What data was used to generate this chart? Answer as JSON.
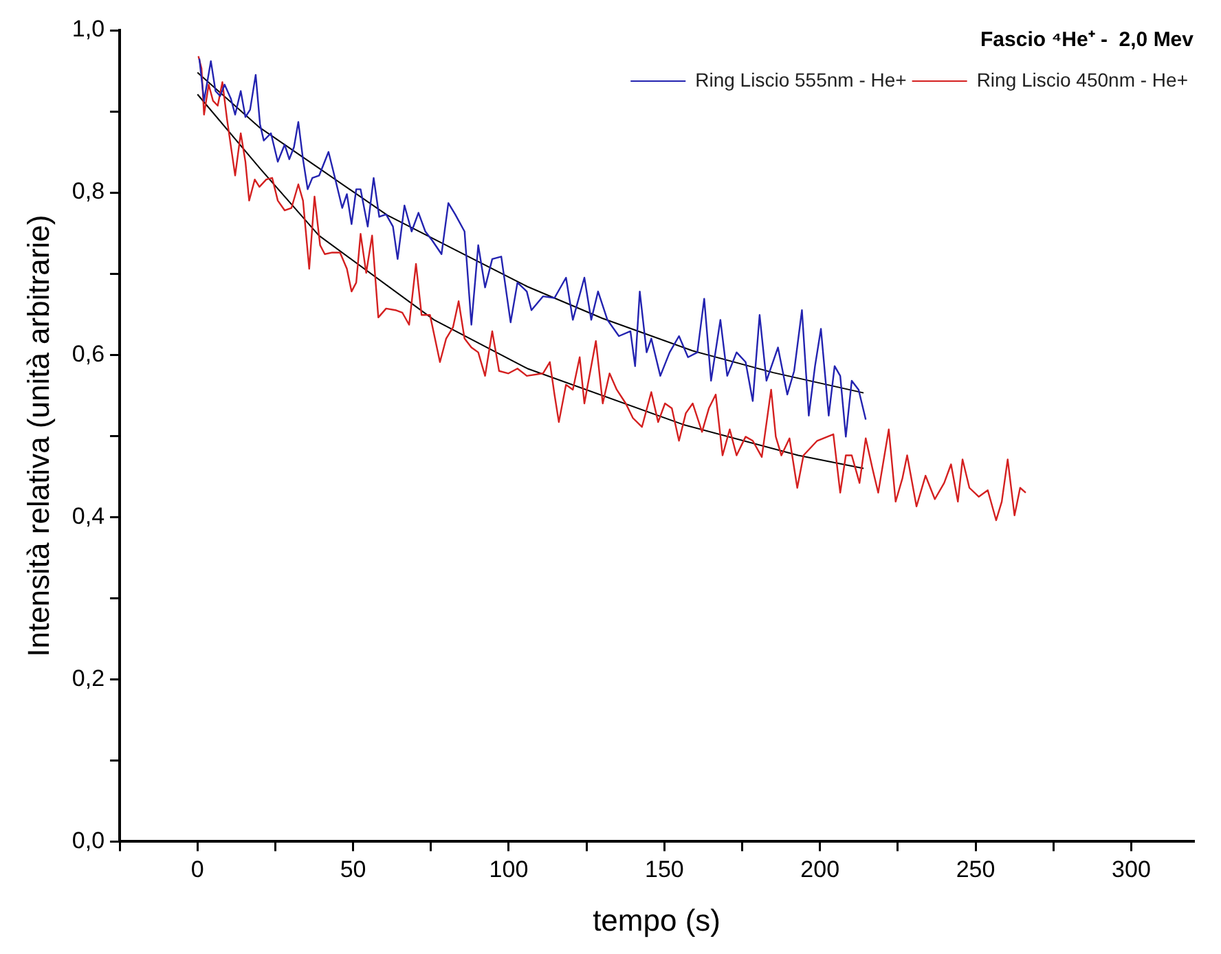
{
  "chart_data": {
    "type": "line",
    "title": "Fascio ⁴He⁺ -  2,0 Mev",
    "xlabel": "tempo (s)",
    "ylabel": "Intensità relativa (unità arbitrarie)",
    "xlim": [
      -25,
      320
    ],
    "ylim": [
      0,
      1
    ],
    "xticks": [
      {
        "value": -25,
        "label": null
      },
      0,
      {
        "value": 25,
        "label": null
      },
      50,
      {
        "value": 75,
        "label": null
      },
      100,
      {
        "value": 125,
        "label": null
      },
      150,
      {
        "value": 175,
        "label": null
      },
      200,
      {
        "value": 225,
        "label": null
      },
      250,
      {
        "value": 275,
        "label": null
      },
      300
    ],
    "yticks": [
      {
        "value": 0,
        "label": "0,0"
      },
      {
        "value": 0.1,
        "label": null
      },
      {
        "value": 0.2,
        "label": "0,2"
      },
      {
        "value": 0.3,
        "label": null
      },
      {
        "value": 0.4,
        "label": "0,4"
      },
      {
        "value": 0.5,
        "label": null
      },
      {
        "value": 0.6,
        "label": "0,6"
      },
      {
        "value": 0.7,
        "label": null
      },
      {
        "value": 0.8,
        "label": "0,8"
      },
      {
        "value": 0.9,
        "label": null
      },
      {
        "value": 1,
        "label": "1,0"
      }
    ],
    "grid": false,
    "legend": "top right",
    "marker": "none",
    "line_style": "solid",
    "series": [
      {
        "name": "Ring Liscio 555nm - He+",
        "color": "#2323b0",
        "x": [
          0.6,
          2.1,
          4.3,
          5.8,
          7.3,
          8.7,
          10.7,
          12.1,
          13.9,
          15.4,
          16.9,
          18.7,
          20.1,
          21.3,
          23.6,
          25.8,
          28,
          29.5,
          31,
          32.4,
          33.9,
          35.4,
          36.9,
          39.1,
          42.1,
          44.3,
          46.5,
          48,
          49.5,
          51,
          52.4,
          54.7,
          56.6,
          58.4,
          60.6,
          62.8,
          64.3,
          66.5,
          68.8,
          71,
          73.2,
          75.4,
          78.4,
          80.6,
          82.8,
          85.8,
          88,
          90.2,
          92.4,
          94.7,
          97.6,
          100.6,
          102.8,
          105.8,
          107.3,
          111,
          114.7,
          118.4,
          120.6,
          124.3,
          126.5,
          128.7,
          131.7,
          135.4,
          139.1,
          140.6,
          142.1,
          144.3,
          145.8,
          148.7,
          151.7,
          154.7,
          157.6,
          160.6,
          162.8,
          165,
          168,
          170.2,
          173.2,
          176.1,
          178.4,
          180.6,
          182.8,
          186.5,
          189.5,
          191.7,
          194.2,
          196.4,
          198.4,
          200.3,
          202.8,
          204.7,
          206.5,
          208.3,
          210.2,
          212.4,
          214.7
        ],
        "values": [
          0.965,
          0.913,
          0.962,
          0.925,
          0.919,
          0.933,
          0.916,
          0.896,
          0.925,
          0.893,
          0.902,
          0.945,
          0.884,
          0.864,
          0.873,
          0.838,
          0.859,
          0.841,
          0.856,
          0.887,
          0.841,
          0.804,
          0.818,
          0.821,
          0.85,
          0.816,
          0.781,
          0.798,
          0.761,
          0.804,
          0.804,
          0.758,
          0.818,
          0.77,
          0.773,
          0.758,
          0.718,
          0.784,
          0.752,
          0.775,
          0.752,
          0.741,
          0.724,
          0.787,
          0.773,
          0.752,
          0.637,
          0.735,
          0.683,
          0.718,
          0.721,
          0.64,
          0.689,
          0.678,
          0.655,
          0.672,
          0.67,
          0.695,
          0.643,
          0.695,
          0.643,
          0.678,
          0.643,
          0.623,
          0.629,
          0.586,
          0.678,
          0.603,
          0.62,
          0.574,
          0.603,
          0.623,
          0.597,
          0.603,
          0.669,
          0.568,
          0.643,
          0.574,
          0.603,
          0.591,
          0.543,
          0.649,
          0.568,
          0.609,
          0.551,
          0.58,
          0.655,
          0.525,
          0.586,
          0.632,
          0.525,
          0.586,
          0.574,
          0.499,
          0.568,
          0.557,
          0.52
        ]
      },
      {
        "name": "Ring Liscio 450nm - He+",
        "color": "#d42020",
        "x": [
          0.3,
          1.3,
          2.1,
          3.6,
          5,
          6.5,
          8,
          9.5,
          11,
          12.1,
          13.9,
          15.4,
          16.6,
          18.4,
          19.9,
          22.1,
          24,
          25.8,
          28,
          30.2,
          32.4,
          33.9,
          35.9,
          37.6,
          39.4,
          40.9,
          43.3,
          45.8,
          48,
          49.5,
          51,
          52.4,
          54.2,
          56.1,
          58.1,
          60.6,
          63.6,
          65.8,
          68,
          70.2,
          72,
          74.7,
          77.9,
          79.9,
          82.1,
          83.9,
          85.8,
          88,
          90.2,
          92.4,
          94.7,
          96.9,
          99.9,
          102.8,
          105.8,
          111,
          113.2,
          114.7,
          116.1,
          118.4,
          120.6,
          122.8,
          124.3,
          126.5,
          128,
          130.2,
          132.4,
          134.7,
          137.6,
          139.9,
          142.8,
          145.8,
          148,
          150.2,
          152.4,
          154.7,
          156.9,
          159.1,
          162.1,
          164.3,
          166.5,
          168.7,
          171,
          173.2,
          176.1,
          178.4,
          181.3,
          184.3,
          185.8,
          187.6,
          190.2,
          192.7,
          194.7,
          199.1,
          204.3,
          206.5,
          208.3,
          210.2,
          212.7,
          214.7,
          216.9,
          218.7,
          222.1,
          224.3,
          226.5,
          228,
          231,
          233.9,
          236.9,
          239.9,
          242.1,
          244.3,
          245.8,
          248,
          251,
          253.9,
          256.6,
          258.4,
          260.3,
          262.5,
          264.3,
          266.1
        ],
        "values": [
          0.968,
          0.953,
          0.896,
          0.933,
          0.913,
          0.907,
          0.936,
          0.89,
          0.85,
          0.821,
          0.873,
          0.838,
          0.79,
          0.816,
          0.807,
          0.816,
          0.818,
          0.79,
          0.778,
          0.781,
          0.81,
          0.79,
          0.706,
          0.795,
          0.735,
          0.724,
          0.726,
          0.726,
          0.706,
          0.678,
          0.689,
          0.749,
          0.701,
          0.747,
          0.646,
          0.657,
          0.655,
          0.652,
          0.637,
          0.712,
          0.649,
          0.649,
          0.591,
          0.62,
          0.634,
          0.666,
          0.62,
          0.609,
          0.603,
          0.574,
          0.629,
          0.58,
          0.577,
          0.583,
          0.574,
          0.577,
          0.591,
          0.551,
          0.517,
          0.563,
          0.557,
          0.597,
          0.54,
          0.586,
          0.617,
          0.54,
          0.577,
          0.557,
          0.54,
          0.522,
          0.511,
          0.554,
          0.517,
          0.54,
          0.534,
          0.494,
          0.528,
          0.54,
          0.505,
          0.534,
          0.551,
          0.476,
          0.508,
          0.476,
          0.499,
          0.494,
          0.474,
          0.557,
          0.499,
          0.476,
          0.497,
          0.436,
          0.476,
          0.494,
          0.502,
          0.43,
          0.476,
          0.476,
          0.442,
          0.497,
          0.459,
          0.43,
          0.508,
          0.419,
          0.448,
          0.476,
          0.413,
          0.451,
          0.422,
          0.442,
          0.465,
          0.419,
          0.471,
          0.436,
          0.425,
          0.433,
          0.396,
          0.419,
          0.471,
          0.402,
          0.436,
          0.43
        ]
      },
      {
        "type": "line",
        "color": "#000000",
        "x": [
          0,
          20,
          39,
          61,
          85,
          106,
          130,
          159,
          185,
          214
        ],
        "values": [
          0.948,
          0.88,
          0.83,
          0.772,
          0.725,
          0.684,
          0.645,
          0.605,
          0.578,
          0.553
        ]
      },
      {
        "type": "line",
        "color": "#000000",
        "x": [
          0,
          20,
          39,
          76,
          106,
          156,
          193,
          214
        ],
        "values": [
          0.921,
          0.83,
          0.747,
          0.643,
          0.583,
          0.514,
          0.476,
          0.46
        ]
      }
    ]
  }
}
